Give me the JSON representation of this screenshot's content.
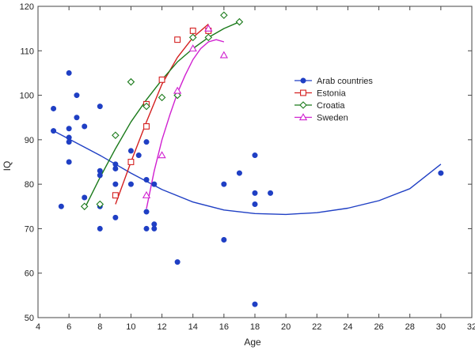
{
  "chart_data": {
    "type": "scatter",
    "xlabel": "Age",
    "ylabel": "IQ",
    "xlim": [
      4,
      32
    ],
    "ylim": [
      50,
      120
    ],
    "xticks": [
      4,
      6,
      8,
      10,
      12,
      14,
      16,
      18,
      20,
      22,
      24,
      26,
      28,
      30,
      32
    ],
    "yticks": [
      50,
      60,
      70,
      80,
      90,
      100,
      110,
      120
    ],
    "legend_position": "upper-right-center",
    "grid": false,
    "series": [
      {
        "name": "Arab countries",
        "marker": "filled-circle",
        "color": "#1f3fc4",
        "points": [
          [
            5,
            97
          ],
          [
            5,
            92
          ],
          [
            5.5,
            75
          ],
          [
            6,
            105
          ],
          [
            6,
            92.5
          ],
          [
            6,
            90.5
          ],
          [
            6,
            89.5
          ],
          [
            6,
            85
          ],
          [
            6.5,
            100
          ],
          [
            6.5,
            95
          ],
          [
            7,
            93
          ],
          [
            7,
            77
          ],
          [
            8,
            97.5
          ],
          [
            8,
            83
          ],
          [
            8,
            82
          ],
          [
            8,
            75
          ],
          [
            8,
            70
          ],
          [
            9,
            84.5
          ],
          [
            9,
            83.5
          ],
          [
            9,
            80
          ],
          [
            9,
            72.5
          ],
          [
            10,
            87.5
          ],
          [
            10,
            80
          ],
          [
            10.5,
            86.5
          ],
          [
            11,
            98
          ],
          [
            11,
            89.5
          ],
          [
            11,
            81
          ],
          [
            11,
            73.8
          ],
          [
            11,
            70
          ],
          [
            11.5,
            80
          ],
          [
            11.5,
            71
          ],
          [
            11.5,
            70
          ],
          [
            13,
            62.5
          ],
          [
            16,
            80
          ],
          [
            16,
            67.5
          ],
          [
            17,
            82.5
          ],
          [
            18,
            86.5
          ],
          [
            18,
            78
          ],
          [
            18,
            75.5
          ],
          [
            18,
            53
          ],
          [
            19,
            78
          ],
          [
            30,
            82.5
          ]
        ],
        "fit": [
          [
            5,
            92
          ],
          [
            8,
            86.5
          ],
          [
            10,
            82.5
          ],
          [
            12,
            78.8
          ],
          [
            14,
            76
          ],
          [
            16,
            74.2
          ],
          [
            18,
            73.4
          ],
          [
            20,
            73.2
          ],
          [
            22,
            73.6
          ],
          [
            24,
            74.6
          ],
          [
            26,
            76.3
          ],
          [
            28,
            79
          ],
          [
            30,
            84.5
          ]
        ]
      },
      {
        "name": "Estonia",
        "marker": "open-square",
        "color": "#d42020",
        "points": [
          [
            9,
            77.5
          ],
          [
            10,
            85
          ],
          [
            11,
            93
          ],
          [
            11,
            98
          ],
          [
            12,
            103.5
          ],
          [
            13,
            112.5
          ],
          [
            14,
            114.5
          ],
          [
            15,
            114.5
          ]
        ],
        "fit": [
          [
            9,
            75.5
          ],
          [
            10,
            85
          ],
          [
            11,
            94
          ],
          [
            12,
            102.5
          ],
          [
            13,
            108.5
          ],
          [
            14,
            113
          ],
          [
            15,
            116
          ]
        ]
      },
      {
        "name": "Croatia",
        "marker": "open-diamond",
        "color": "#1a7a1a",
        "points": [
          [
            7,
            75
          ],
          [
            8,
            75.5
          ],
          [
            9,
            91
          ],
          [
            10,
            103
          ],
          [
            11,
            97.5
          ],
          [
            12,
            99.5
          ],
          [
            13,
            100
          ],
          [
            14,
            113
          ],
          [
            15,
            113
          ],
          [
            16,
            118
          ],
          [
            17,
            116.5
          ]
        ],
        "fit": [
          [
            7,
            74.5
          ],
          [
            8,
            81.5
          ],
          [
            9,
            88
          ],
          [
            10,
            94
          ],
          [
            11,
            99
          ],
          [
            12,
            103.5
          ],
          [
            13,
            107.5
          ],
          [
            14,
            110.5
          ],
          [
            15,
            113
          ],
          [
            16,
            115
          ],
          [
            17,
            116.5
          ]
        ]
      },
      {
        "name": "Sweden",
        "marker": "open-triangle",
        "color": "#d020d0",
        "points": [
          [
            11,
            77.5
          ],
          [
            12,
            86.5
          ],
          [
            13,
            101
          ],
          [
            14,
            110.5
          ],
          [
            15,
            115
          ],
          [
            16,
            109
          ]
        ],
        "fit": [
          [
            11,
            74.5
          ],
          [
            11.5,
            83
          ],
          [
            12,
            90
          ],
          [
            12.5,
            95.5
          ],
          [
            13,
            100.5
          ],
          [
            13.5,
            104.5
          ],
          [
            14,
            108
          ],
          [
            14.5,
            110.5
          ],
          [
            15,
            112
          ],
          [
            15.5,
            112.5
          ],
          [
            16,
            112
          ]
        ]
      }
    ]
  }
}
